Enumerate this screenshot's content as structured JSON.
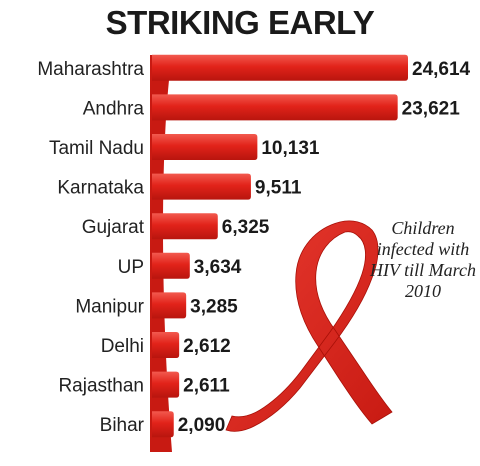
{
  "chart_data": {
    "type": "bar",
    "orientation": "horizontal",
    "title": "STRIKING EARLY",
    "annotation": "Children infected with HIV till March 2010",
    "categories": [
      "Maharashtra",
      "Andhra",
      "Tamil Nadu",
      "Karnataka",
      "Gujarat",
      "UP",
      "Manipur",
      "Delhi",
      "Rajasthan",
      "Bihar"
    ],
    "values": [
      24614,
      23621,
      10131,
      9511,
      6325,
      3634,
      3285,
      2612,
      2611,
      2090
    ],
    "value_labels": [
      "24,614",
      "23,621",
      "10,131",
      "9,511",
      "6,325",
      "3,634",
      "3,285",
      "2,612",
      "2,611",
      "2,090"
    ],
    "bar_color": "#e2231a",
    "grid": false,
    "legend": "none"
  }
}
